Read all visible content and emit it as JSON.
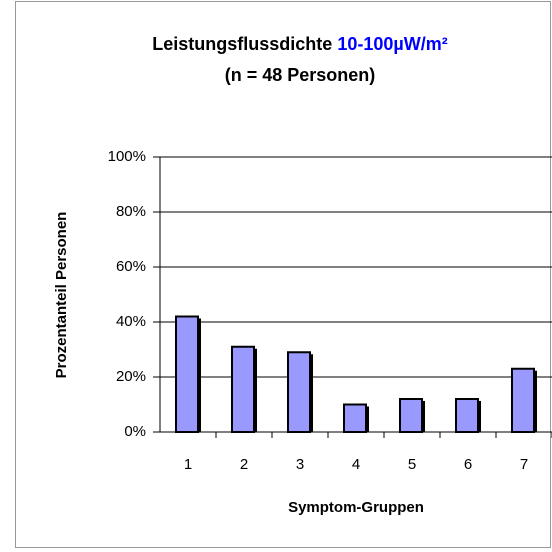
{
  "chart_data": {
    "type": "bar",
    "title": "Leistungsflussdichte",
    "title_highlight": "10-100µW/m²",
    "subtitle": "(n = 48 Personen)",
    "y_label": "Prozentanteil Personen",
    "x_label": "Symptom-Gruppen",
    "categories": [
      "1",
      "2",
      "3",
      "4",
      "5",
      "6",
      "7"
    ],
    "values": [
      42,
      31,
      29,
      10,
      12,
      12,
      23
    ],
    "color": "#9999ff",
    "title_highlight_color": "#0000ff",
    "ylim": [
      0,
      100
    ],
    "yticks": [
      {
        "value": 0,
        "label": "0%"
      },
      {
        "value": 20,
        "label": "20%"
      },
      {
        "value": 40,
        "label": "40%"
      },
      {
        "value": 60,
        "label": "60%"
      },
      {
        "value": 80,
        "label": "80%"
      },
      {
        "value": 100,
        "label": "100%"
      }
    ],
    "grid": true
  }
}
